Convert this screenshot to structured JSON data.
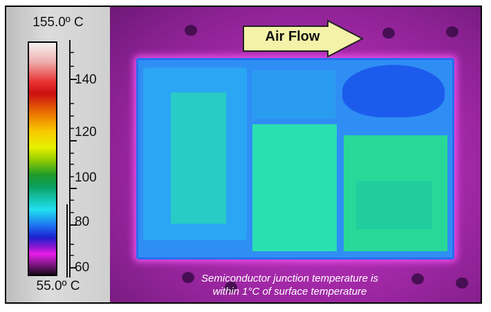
{
  "scale": {
    "max_label": "155.0º C",
    "min_label": "55.0º C",
    "ticks": [
      "140",
      "120",
      "100",
      "80",
      "60"
    ]
  },
  "annotation": {
    "arrow_label": "Air Flow",
    "caption_line1": "Semiconductor junction temperature is",
    "caption_line2": "within 1°C of surface temperature"
  }
}
